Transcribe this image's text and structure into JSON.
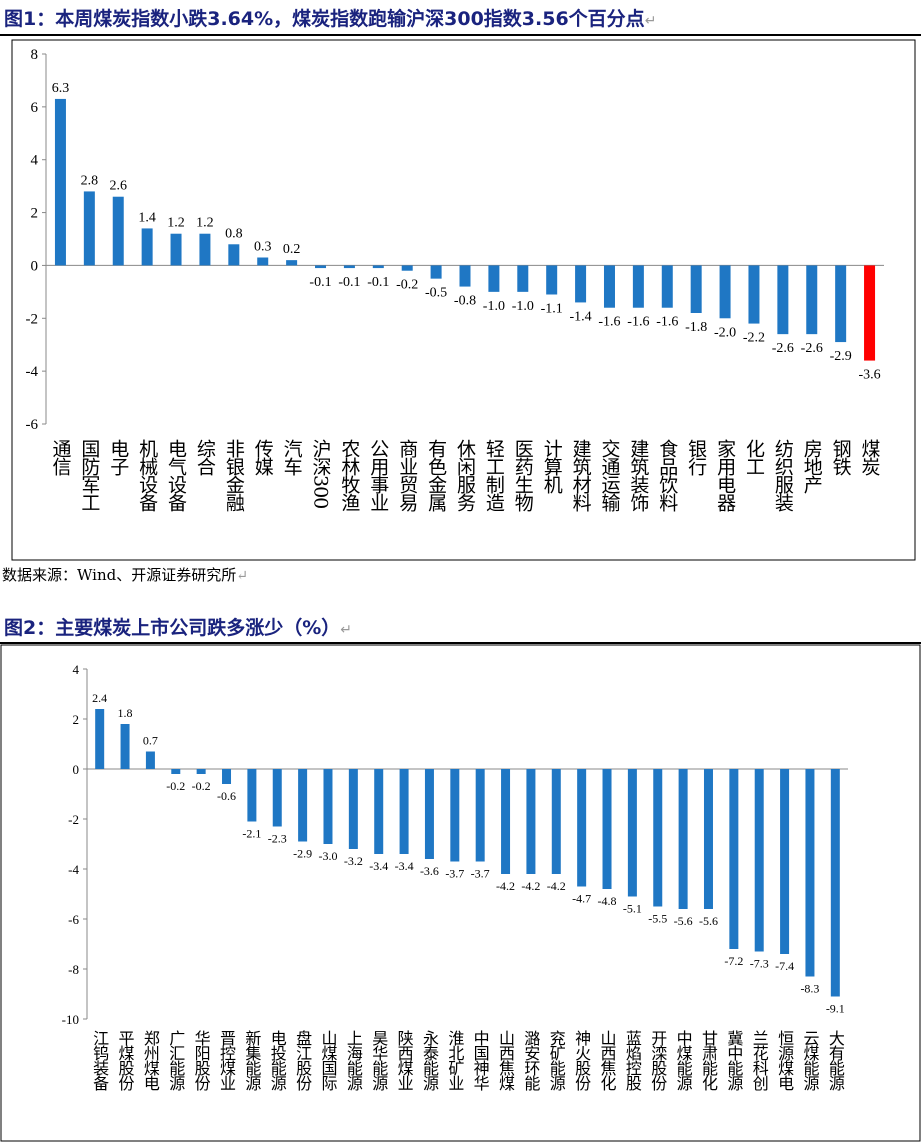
{
  "figure1": {
    "title": "图1：本周煤炭指数小跌3.64%，煤炭指数跑输沪深300指数3.56个百分点",
    "source": "数据来源：Wind、开源证券研究所"
  },
  "figure2": {
    "title": "图2：主要煤炭上市公司跌多涨少（%）"
  },
  "colors": {
    "bar": "#1f77c4",
    "highlight": "#ff0000",
    "title": "#1a237e"
  },
  "chart_data": [
    {
      "type": "bar",
      "title": "本周煤炭指数小跌3.64%，煤炭指数跑输沪深300指数3.56个百分点",
      "categories": [
        "通信",
        "国防军工",
        "电子",
        "机械设备",
        "电气设备",
        "综合",
        "非银金融",
        "传媒",
        "汽车",
        "沪深300",
        "农林牧渔",
        "公用事业",
        "商业贸易",
        "有色金属",
        "休闲服务",
        "轻工制造",
        "医药生物",
        "计算机",
        "建筑材料",
        "交通运输",
        "建筑装饰",
        "食品饮料",
        "银行",
        "家用电器",
        "化工",
        "纺织服装",
        "房地产",
        "钢铁",
        "煤炭"
      ],
      "values": [
        6.3,
        2.8,
        2.6,
        1.4,
        1.2,
        1.2,
        0.8,
        0.3,
        0.2,
        -0.1,
        -0.1,
        -0.1,
        -0.2,
        -0.5,
        -0.8,
        -1.0,
        -1.0,
        -1.1,
        -1.4,
        -1.6,
        -1.6,
        -1.6,
        -1.8,
        -2.0,
        -2.2,
        -2.6,
        -2.6,
        -2.9,
        -3.6
      ],
      "highlight": "煤炭",
      "ylim": [
        -6,
        8
      ],
      "yticks": [
        8,
        6,
        4,
        2,
        0,
        -2,
        -4,
        -6
      ],
      "xlabel": "",
      "ylabel": ""
    },
    {
      "type": "bar",
      "title": "主要煤炭上市公司跌多涨少（%）",
      "categories": [
        "江钨装备",
        "平煤股份",
        "郑州煤电",
        "广汇能源",
        "华阳股份",
        "晋控煤业",
        "新集能源",
        "电投能源",
        "盘江股份",
        "山煤国际",
        "上海能源",
        "昊华能源",
        "陕西煤业",
        "永泰能源",
        "淮北矿业",
        "中国神华",
        "山西焦煤",
        "潞安环能",
        "兖矿能源",
        "神火股份",
        "山西焦化",
        "蓝焰控股",
        "开滦股份",
        "中煤能源",
        "甘肃能化",
        "冀中能源",
        "兰花科创",
        "恒源煤电",
        "云煤能源",
        "大有能源"
      ],
      "values": [
        2.4,
        1.8,
        0.7,
        -0.2,
        -0.2,
        -0.6,
        -2.1,
        -2.3,
        -2.9,
        -3.0,
        -3.2,
        -3.4,
        -3.4,
        -3.6,
        -3.7,
        -3.7,
        -4.2,
        -4.2,
        -4.2,
        -4.7,
        -4.8,
        -5.1,
        -5.5,
        -5.6,
        -5.6,
        -7.2,
        -7.3,
        -7.4,
        -8.3,
        -9.1
      ],
      "ylim": [
        -10,
        4
      ],
      "yticks": [
        4,
        2,
        0,
        -2,
        -4,
        -6,
        -8,
        -10
      ],
      "xlabel": "",
      "ylabel": ""
    }
  ]
}
